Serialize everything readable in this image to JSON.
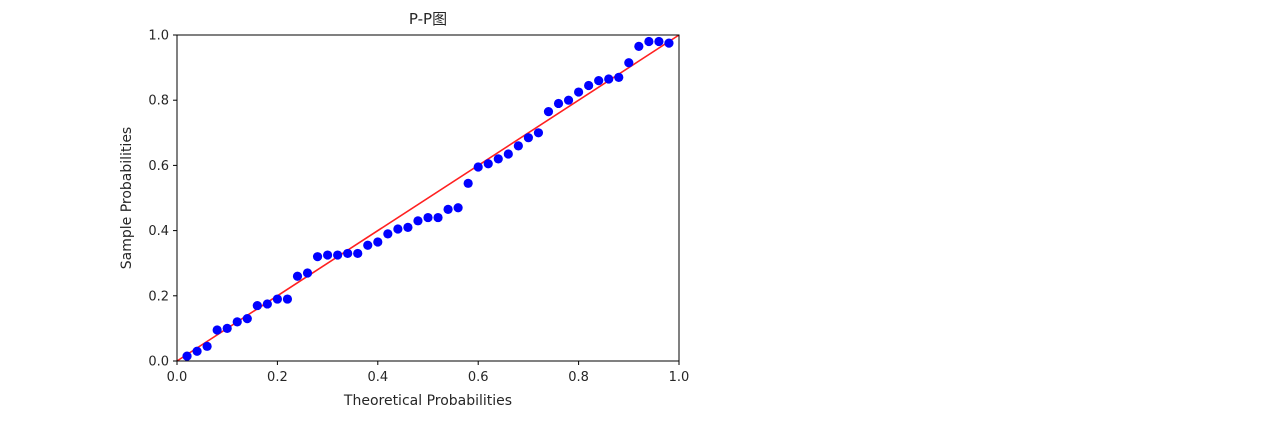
{
  "chart_data": {
    "type": "scatter",
    "title": "P-P图",
    "xlabel": "Theoretical Probabilities",
    "ylabel": "Sample Probabilities",
    "xlim": [
      0,
      1
    ],
    "ylim": [
      0,
      1
    ],
    "xticks": [
      "0.0",
      "0.2",
      "0.4",
      "0.6",
      "0.8",
      "1.0"
    ],
    "yticks": [
      "0.0",
      "0.2",
      "0.4",
      "0.6",
      "0.8",
      "1.0"
    ],
    "grid": false,
    "reference_line": {
      "from": [
        0,
        0
      ],
      "to": [
        1,
        1
      ],
      "color": "#ff2020"
    },
    "series": [
      {
        "marker_color": "#0000ff",
        "x": [
          0.02,
          0.04,
          0.06,
          0.08,
          0.1,
          0.12,
          0.14,
          0.16,
          0.18,
          0.2,
          0.22,
          0.24,
          0.26,
          0.28,
          0.3,
          0.32,
          0.34,
          0.36,
          0.38,
          0.4,
          0.42,
          0.44,
          0.46,
          0.48,
          0.5,
          0.52,
          0.54,
          0.56,
          0.58,
          0.6,
          0.62,
          0.64,
          0.66,
          0.68,
          0.7,
          0.72,
          0.74,
          0.76,
          0.78,
          0.8,
          0.82,
          0.84,
          0.86,
          0.88,
          0.9,
          0.92,
          0.94,
          0.96,
          0.98
        ],
        "y": [
          0.015,
          0.03,
          0.045,
          0.095,
          0.1,
          0.12,
          0.13,
          0.17,
          0.175,
          0.19,
          0.19,
          0.26,
          0.27,
          0.32,
          0.325,
          0.325,
          0.33,
          0.33,
          0.355,
          0.365,
          0.39,
          0.405,
          0.41,
          0.43,
          0.44,
          0.44,
          0.465,
          0.47,
          0.545,
          0.595,
          0.605,
          0.62,
          0.635,
          0.66,
          0.685,
          0.7,
          0.765,
          0.79,
          0.8,
          0.825,
          0.845,
          0.86,
          0.865,
          0.87,
          0.915,
          0.965,
          0.98,
          0.98,
          0.975
        ]
      }
    ]
  }
}
